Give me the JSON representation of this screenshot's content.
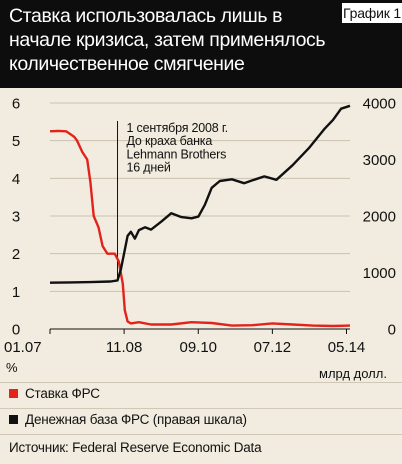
{
  "header": {
    "title": "Ставка использовалась лишь в начале кризиса, затем применялось количественное смягчение",
    "badge": "График 1"
  },
  "units": {
    "left": "%",
    "right": "млрд долл."
  },
  "legend": {
    "items": [
      {
        "label": "Ставка ФРС",
        "color": "#e3231b"
      },
      {
        "label": "Денежная база ФРС (правая шкала)",
        "color": "#111111"
      }
    ]
  },
  "source": "Источник: Federal Reserve Economic Data",
  "annotation": {
    "lines": [
      "1 сентября 2008 г.",
      "До краха банка",
      "Lehmann Brothers",
      "16 дней"
    ]
  },
  "chart_data": {
    "type": "line",
    "x_ticks": [
      "01.07",
      "11.08",
      "09.10",
      "07.12",
      "05.14"
    ],
    "x_tick_dates": [
      2007.0,
      2008.833,
      2010.667,
      2012.5,
      2014.333
    ],
    "xlim": [
      2007.0,
      2014.42
    ],
    "y_left": {
      "ticks": [
        0,
        1,
        2,
        3,
        4,
        5,
        6
      ],
      "lim": [
        0,
        6
      ]
    },
    "y_right": {
      "ticks": [
        0,
        1000,
        2000,
        3000,
        4000
      ],
      "lim": [
        0,
        4000
      ]
    },
    "event_date": 2008.67,
    "series": [
      {
        "name": "Ставка ФРС",
        "axis": "left",
        "color": "#e3231b",
        "x": [
          2007.0,
          2007.2,
          2007.4,
          2007.6,
          2007.67,
          2007.8,
          2007.92,
          2008.0,
          2008.08,
          2008.2,
          2008.3,
          2008.42,
          2008.6,
          2008.7,
          2008.8,
          2008.85,
          2008.92,
          2009.0,
          2009.2,
          2009.5,
          2010.0,
          2010.5,
          2011.0,
          2011.5,
          2012.0,
          2012.5,
          2013.0,
          2013.5,
          2014.0,
          2014.42
        ],
        "y": [
          5.25,
          5.26,
          5.25,
          5.1,
          5.0,
          4.7,
          4.5,
          3.9,
          3.0,
          2.7,
          2.2,
          2.0,
          2.0,
          1.8,
          1.2,
          0.5,
          0.2,
          0.15,
          0.18,
          0.12,
          0.12,
          0.18,
          0.16,
          0.09,
          0.1,
          0.15,
          0.12,
          0.09,
          0.08,
          0.09
        ]
      },
      {
        "name": "Денежная база ФРС (правая шкала)",
        "axis": "right",
        "color": "#111111",
        "x": [
          2007.0,
          2007.5,
          2008.0,
          2008.5,
          2008.67,
          2008.75,
          2008.85,
          2008.92,
          2009.0,
          2009.1,
          2009.2,
          2009.35,
          2009.5,
          2009.75,
          2010.0,
          2010.25,
          2010.5,
          2010.67,
          2010.83,
          2011.0,
          2011.2,
          2011.5,
          2011.8,
          2012.0,
          2012.3,
          2012.6,
          2013.0,
          2013.4,
          2013.8,
          2014.0,
          2014.2,
          2014.42
        ],
        "y": [
          820,
          825,
          830,
          840,
          860,
          1050,
          1400,
          1650,
          1720,
          1600,
          1750,
          1800,
          1760,
          1900,
          2050,
          1980,
          1960,
          1990,
          2200,
          2500,
          2620,
          2650,
          2580,
          2630,
          2700,
          2640,
          2900,
          3200,
          3550,
          3700,
          3900,
          3950
        ]
      }
    ]
  }
}
